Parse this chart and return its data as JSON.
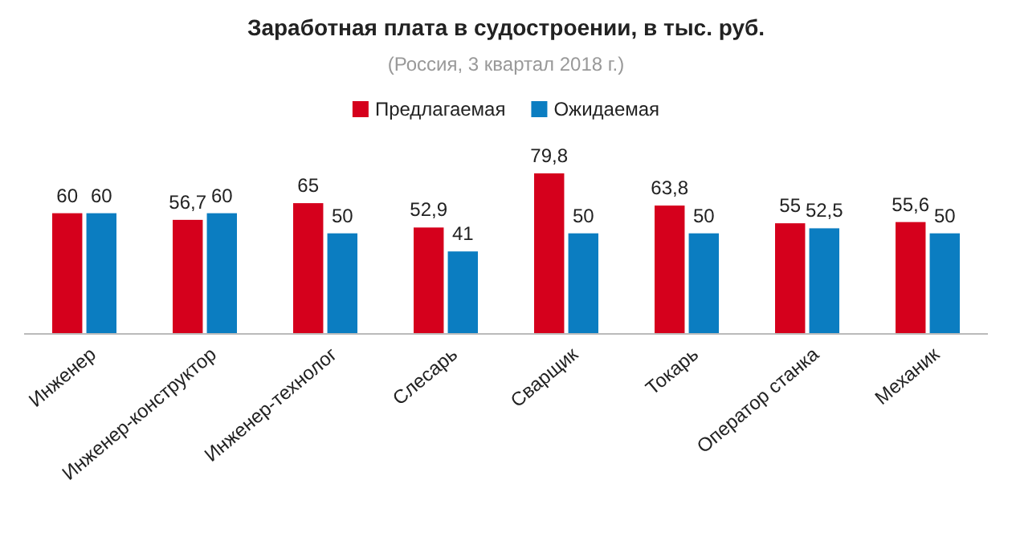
{
  "chart_data": {
    "type": "bar",
    "title": "Заработная плата в судостроении, в тыс. руб.",
    "subtitle": "(Россия, 3 квартал 2018  г.)",
    "categories": [
      "Инженер",
      "Инженер-конструктор",
      "Инженер-технолог",
      "Слесарь",
      "Сварщик",
      "Токарь",
      "Оператор станка",
      "Механик"
    ],
    "series": [
      {
        "name": "Предлагаемая",
        "color": "#d5001c",
        "values": [
          60,
          56.7,
          65,
          52.9,
          79.8,
          63.8,
          55,
          55.6
        ],
        "value_labels": [
          "60",
          "56,7",
          "65",
          "52,9",
          "79,8",
          "63,8",
          "55",
          "55,6"
        ]
      },
      {
        "name": "Ожидаемая",
        "color": "#0b7dc1",
        "values": [
          60,
          60,
          50,
          41,
          50,
          50,
          52.5,
          50
        ],
        "value_labels": [
          "60",
          "60",
          "50",
          "41",
          "50",
          "50",
          "52,5",
          "50"
        ]
      }
    ],
    "legend": "top"
  }
}
